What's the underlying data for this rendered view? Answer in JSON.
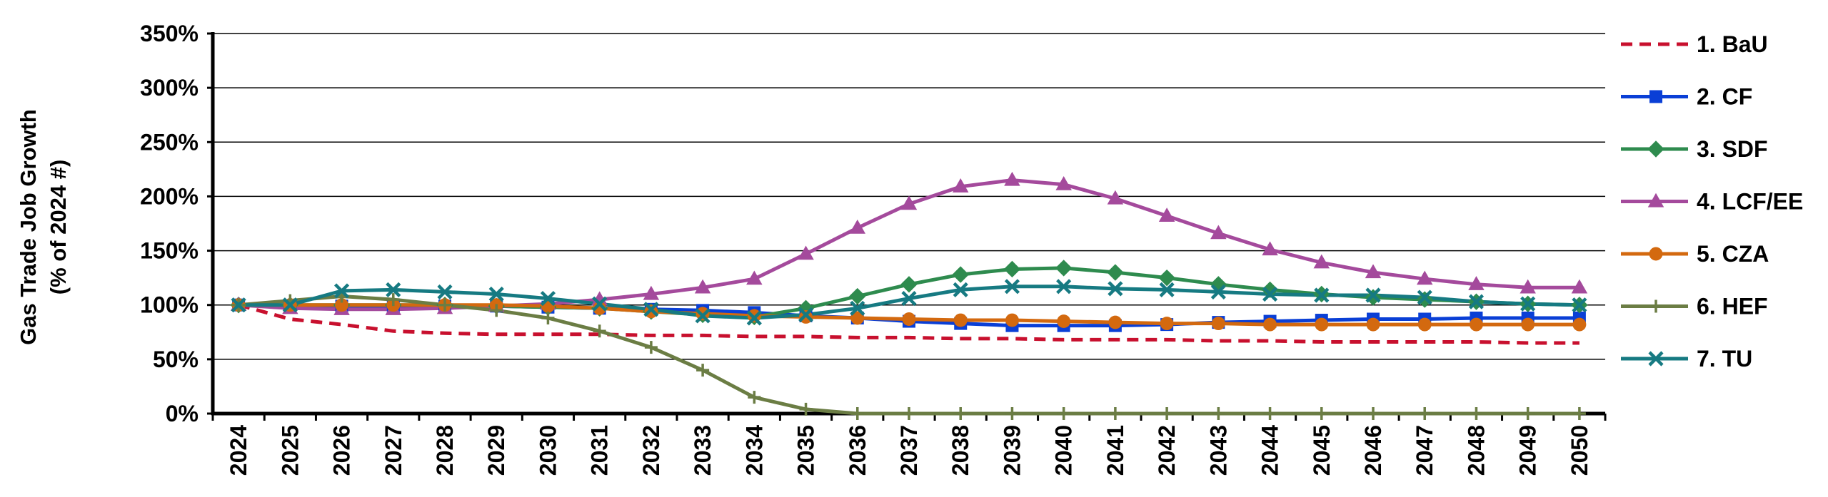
{
  "chart_data": {
    "type": "line",
    "title": "",
    "ylabel": "Gas Trade Job Growth (% of 2024 #)",
    "ylabel_lines": [
      "Gas Trade Job Growth",
      "(% of 2024 #)"
    ],
    "xlabel": "",
    "ylim": [
      0,
      350
    ],
    "yticks": [
      0,
      50,
      100,
      150,
      200,
      250,
      300,
      350
    ],
    "ytick_labels": [
      "0%",
      "50%",
      "100%",
      "150%",
      "200%",
      "250%",
      "300%",
      "350%"
    ],
    "grid": true,
    "legend_position": "right",
    "x": [
      "2024",
      "2025",
      "2026",
      "2027",
      "2028",
      "2029",
      "2030",
      "2031",
      "2032",
      "2033",
      "2034",
      "2035",
      "2036",
      "2037",
      "2038",
      "2039",
      "2040",
      "2041",
      "2042",
      "2043",
      "2044",
      "2045",
      "2046",
      "2047",
      "2048",
      "2049",
      "2050"
    ],
    "series": [
      {
        "name": "1. BaU",
        "color": "#c8102e",
        "style": "dashed",
        "marker": "none",
        "values": [
          100,
          87,
          82,
          76,
          74,
          73,
          73,
          73,
          72,
          72,
          71,
          71,
          70,
          70,
          69,
          69,
          68,
          68,
          68,
          67,
          67,
          66,
          66,
          66,
          66,
          65,
          65
        ]
      },
      {
        "name": "2. CF",
        "color": "#0a3fd6",
        "style": "solid",
        "marker": "square",
        "values": [
          100,
          99,
          99,
          99,
          99,
          99,
          98,
          97,
          96,
          95,
          93,
          90,
          88,
          85,
          83,
          81,
          81,
          81,
          82,
          84,
          85,
          86,
          87,
          87,
          88,
          88,
          88
        ]
      },
      {
        "name": "3. SDF",
        "color": "#2e8b4e",
        "style": "solid",
        "marker": "diamond",
        "values": [
          100,
          100,
          100,
          100,
          100,
          99,
          98,
          97,
          94,
          91,
          89,
          97,
          108,
          119,
          128,
          133,
          134,
          130,
          125,
          119,
          114,
          110,
          107,
          105,
          103,
          101,
          100
        ]
      },
      {
        "name": "4. LCF/EE",
        "color": "#a44a9c",
        "style": "solid",
        "marker": "triangle",
        "values": [
          100,
          97,
          96,
          96,
          97,
          99,
          101,
          105,
          110,
          116,
          124,
          147,
          171,
          193,
          209,
          215,
          211,
          198,
          182,
          166,
          151,
          139,
          130,
          124,
          119,
          116,
          116
        ]
      },
      {
        "name": "5. CZA",
        "color": "#d3690f",
        "style": "solid",
        "marker": "circle",
        "values": [
          100,
          100,
          100,
          100,
          100,
          100,
          99,
          97,
          94,
          92,
          90,
          89,
          88,
          87,
          86,
          86,
          85,
          84,
          83,
          83,
          82,
          82,
          82,
          82,
          82,
          82,
          82
        ]
      },
      {
        "name": "6. HEF",
        "color": "#6b7d44",
        "style": "solid",
        "marker": "plus",
        "values": [
          100,
          104,
          108,
          105,
          100,
          95,
          88,
          76,
          61,
          40,
          15,
          4,
          0,
          0,
          0,
          0,
          0,
          0,
          0,
          0,
          0,
          0,
          0,
          0,
          0,
          0,
          0
        ]
      },
      {
        "name": "7. TU",
        "color": "#167a82",
        "style": "solid",
        "marker": "x",
        "values": [
          100,
          100,
          113,
          114,
          112,
          110,
          106,
          101,
          96,
          90,
          88,
          91,
          97,
          106,
          114,
          117,
          117,
          115,
          114,
          112,
          110,
          109,
          109,
          107,
          103,
          101,
          100
        ]
      }
    ]
  }
}
